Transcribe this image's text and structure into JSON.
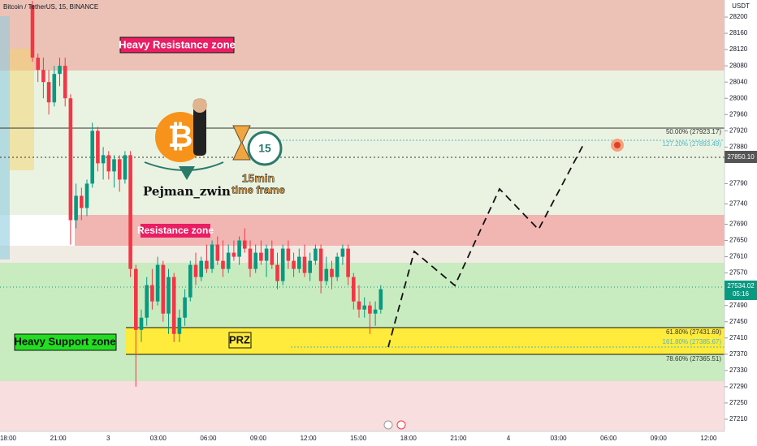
{
  "chart_data": {
    "type": "candlestick",
    "header": "Bitcoin / TetherUS, 15, BINANCE",
    "currency": "USDT",
    "ylim": [
      27180,
      28242
    ],
    "yticks": [
      28200,
      28160,
      28120,
      28080,
      28040,
      28000,
      27960,
      27920,
      27880,
      27790,
      27740,
      27690,
      27650,
      27610,
      27570,
      27490,
      27450,
      27410,
      27370,
      27330,
      27290,
      27250,
      27210
    ],
    "x_labels": [
      "18:00",
      "21:00",
      "3",
      "03:00",
      "06:00",
      "09:00",
      "12:00",
      "15:00",
      "18:00",
      "21:00",
      "4",
      "03:00",
      "06:00",
      "09:00",
      "12:00"
    ],
    "up_color": "#089981",
    "down_color": "#f23645",
    "candles": [
      [
        28230,
        28240,
        28090,
        28100
      ],
      [
        28100,
        28110,
        28040,
        28070
      ],
      [
        28070,
        28100,
        28000,
        28040
      ],
      [
        28040,
        28070,
        27960,
        27990
      ],
      [
        27990,
        28080,
        27980,
        28060
      ],
      [
        28060,
        28100,
        28030,
        28080
      ],
      [
        28080,
        28100,
        27980,
        28000
      ],
      [
        28000,
        28010,
        27640,
        27700
      ],
      [
        27700,
        27790,
        27680,
        27760
      ],
      [
        27760,
        27780,
        27700,
        27730
      ],
      [
        27730,
        27800,
        27710,
        27790
      ],
      [
        27790,
        27940,
        27780,
        27920
      ],
      [
        27920,
        27930,
        27820,
        27840
      ],
      [
        27840,
        27880,
        27800,
        27860
      ],
      [
        27860,
        27870,
        27800,
        27820
      ],
      [
        27820,
        27860,
        27780,
        27850
      ],
      [
        27850,
        27860,
        27770,
        27800
      ],
      [
        27800,
        27870,
        27790,
        27860
      ],
      [
        27860,
        27870,
        27560,
        27580
      ],
      [
        27580,
        27590,
        27290,
        27430
      ],
      [
        27430,
        27480,
        27400,
        27460
      ],
      [
        27460,
        27560,
        27440,
        27540
      ],
      [
        27540,
        27580,
        27480,
        27500
      ],
      [
        27500,
        27610,
        27490,
        27590
      ],
      [
        27590,
        27600,
        27450,
        27470
      ],
      [
        27470,
        27580,
        27420,
        27560
      ],
      [
        27560,
        27570,
        27400,
        27420
      ],
      [
        27420,
        27480,
        27400,
        27460
      ],
      [
        27460,
        27530,
        27440,
        27510
      ],
      [
        27510,
        27600,
        27500,
        27590
      ],
      [
        27590,
        27620,
        27540,
        27560
      ],
      [
        27560,
        27610,
        27550,
        27600
      ],
      [
        27600,
        27640,
        27570,
        27580
      ],
      [
        27580,
        27650,
        27570,
        27640
      ],
      [
        27640,
        27660,
        27590,
        27600
      ],
      [
        27600,
        27650,
        27560,
        27580
      ],
      [
        27580,
        27640,
        27570,
        27620
      ],
      [
        27620,
        27650,
        27600,
        27610
      ],
      [
        27610,
        27660,
        27590,
        27650
      ],
      [
        27650,
        27680,
        27620,
        27630
      ],
      [
        27630,
        27650,
        27560,
        27580
      ],
      [
        27580,
        27640,
        27570,
        27620
      ],
      [
        27620,
        27650,
        27590,
        27600
      ],
      [
        27600,
        27640,
        27560,
        27630
      ],
      [
        27630,
        27650,
        27580,
        27590
      ],
      [
        27590,
        27620,
        27530,
        27550
      ],
      [
        27550,
        27640,
        27540,
        27630
      ],
      [
        27630,
        27650,
        27580,
        27600
      ],
      [
        27600,
        27620,
        27560,
        27580
      ],
      [
        27580,
        27630,
        27570,
        27610
      ],
      [
        27610,
        27640,
        27560,
        27570
      ],
      [
        27570,
        27620,
        27550,
        27600
      ],
      [
        27600,
        27640,
        27590,
        27630
      ],
      [
        27630,
        27640,
        27520,
        27550
      ],
      [
        27550,
        27610,
        27540,
        27580
      ],
      [
        27580,
        27600,
        27530,
        27560
      ],
      [
        27560,
        27620,
        27550,
        27610
      ],
      [
        27610,
        27640,
        27590,
        27630
      ],
      [
        27630,
        27640,
        27540,
        27560
      ],
      [
        27560,
        27570,
        27480,
        27500
      ],
      [
        27500,
        27540,
        27460,
        27480
      ],
      [
        27480,
        27510,
        27460,
        27490
      ],
      [
        27490,
        27500,
        27420,
        27470
      ],
      [
        27470,
        27500,
        27440,
        27480
      ],
      [
        27480,
        27540,
        27470,
        27530
      ]
    ],
    "zones": {
      "heavy_resistance": "Heavy Resistance zone",
      "resistance": "Resistance zone",
      "heavy_support": "Heavy Support zone",
      "prz": "PRZ"
    },
    "fib_levels": [
      "50.00% (27923.17)",
      "127.20% (27893.49)",
      "61.80% (27431.69)",
      "161.80% (27385.67)",
      "78.60% (27365.51)"
    ],
    "price_labels": {
      "last": "27534.02",
      "countdown": "05:16",
      "marker": "27850.10"
    },
    "branding": {
      "name": "Pejman_zwin",
      "timeframe": "15min",
      "timeframe_sub": "time frame",
      "clock": "15",
      "logo": "₿"
    }
  }
}
